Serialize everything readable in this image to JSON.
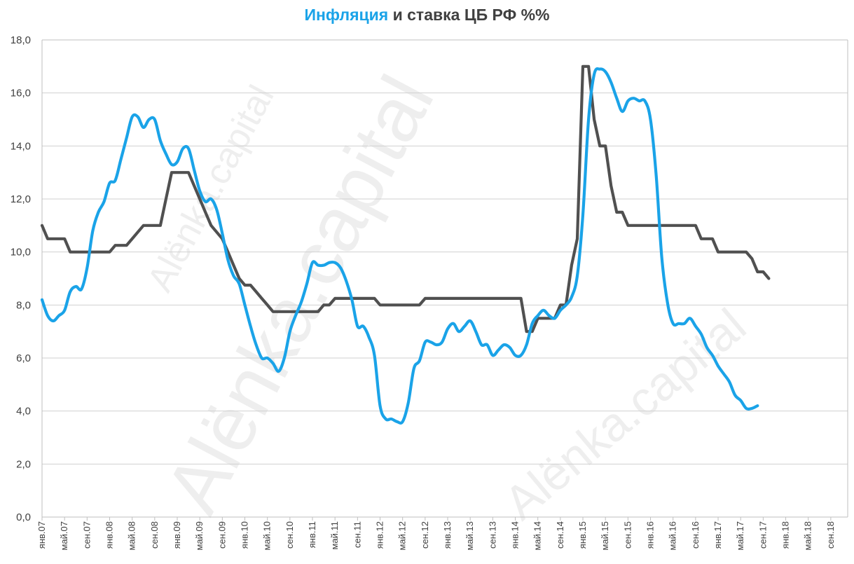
{
  "title": {
    "part1": "Инфляция",
    "part2": " и ставка ЦБ РФ %%"
  },
  "watermarks": [
    "Alënka.capital",
    "Alënka.capital",
    "Alënka.capital"
  ],
  "colors": {
    "inflation": "#1aa3e8",
    "rate": "#505050",
    "grid": "#d0d0d0"
  },
  "chart_data": {
    "type": "line",
    "title": "Инфляция и ставка ЦБ РФ %%",
    "xlabel": "",
    "ylabel": "",
    "ylim": [
      0,
      18
    ],
    "grid": true,
    "legend": "none",
    "yticks": [
      "0,0",
      "2,0",
      "4,0",
      "6,0",
      "8,0",
      "10,0",
      "12,0",
      "14,0",
      "16,0",
      "18,0"
    ],
    "x_tick_labels": [
      "янв.07",
      "май.07",
      "сен.07",
      "янв.08",
      "май.08",
      "сен.08",
      "янв.09",
      "май.09",
      "сен.09",
      "янв.10",
      "май.10",
      "сен.10",
      "янв.11",
      "май.11",
      "сен.11",
      "янв.12",
      "май.12",
      "сен.12",
      "янв.13",
      "май.13",
      "сен.13",
      "янв.14",
      "май.14",
      "сен.14",
      "янв.15",
      "май.15",
      "сен.15",
      "янв.16",
      "май.16",
      "сен.16",
      "янв.17",
      "май.17",
      "сен.17",
      "янв.18",
      "май.18",
      "сен.18"
    ],
    "x_months": 143,
    "series": [
      {
        "key": "inflation",
        "values": [
          8.2,
          7.6,
          7.4,
          7.6,
          7.8,
          8.5,
          8.7,
          8.6,
          9.4,
          10.8,
          11.5,
          11.9,
          12.6,
          12.7,
          13.5,
          14.3,
          15.1,
          15.1,
          14.7,
          15.0,
          15.0,
          14.2,
          13.7,
          13.3,
          13.4,
          13.9,
          13.9,
          13.1,
          12.3,
          11.9,
          12.0,
          11.6,
          10.7,
          9.7,
          9.1,
          8.8,
          8.0,
          7.2,
          6.5,
          6.0,
          6.0,
          5.8,
          5.5,
          6.0,
          7.0,
          7.6,
          8.1,
          8.8,
          9.6,
          9.5,
          9.5,
          9.6,
          9.6,
          9.4,
          8.9,
          8.2,
          7.2,
          7.2,
          6.8,
          6.1,
          4.2,
          3.7,
          3.7,
          3.6,
          3.6,
          4.3,
          5.6,
          5.9,
          6.6,
          6.6,
          6.5,
          6.6,
          7.1,
          7.3,
          7.0,
          7.2,
          7.4,
          7.0,
          6.5,
          6.5,
          6.1,
          6.3,
          6.5,
          6.4,
          6.1,
          6.1,
          6.5,
          7.3,
          7.6,
          7.8,
          7.6,
          7.5,
          7.8,
          8.0,
          8.3,
          9.1,
          11.4,
          15.0,
          16.7,
          16.9,
          16.8,
          16.4,
          15.8,
          15.3,
          15.7,
          15.8,
          15.7,
          15.7,
          15.0,
          12.9,
          9.8,
          8.1,
          7.3,
          7.3,
          7.3,
          7.5,
          7.2,
          6.9,
          6.4,
          6.1,
          5.7,
          5.4,
          5.1,
          4.6,
          4.4,
          4.1,
          4.1,
          4.2
        ],
        "start_month": 0
      },
      {
        "key": "rate",
        "values": [
          11.0,
          10.5,
          10.5,
          10.5,
          10.5,
          10.0,
          10.0,
          10.0,
          10.0,
          10.0,
          10.0,
          10.0,
          10.0,
          10.25,
          10.25,
          10.25,
          10.5,
          10.75,
          11.0,
          11.0,
          11.0,
          11.0,
          12.0,
          13.0,
          13.0,
          13.0,
          13.0,
          12.5,
          12.0,
          11.5,
          11.0,
          10.75,
          10.5,
          10.0,
          9.5,
          9.0,
          8.75,
          8.75,
          8.5,
          8.25,
          8.0,
          7.75,
          7.75,
          7.75,
          7.75,
          7.75,
          7.75,
          7.75,
          7.75,
          7.75,
          8.0,
          8.0,
          8.25,
          8.25,
          8.25,
          8.25,
          8.25,
          8.25,
          8.25,
          8.25,
          8.0,
          8.0,
          8.0,
          8.0,
          8.0,
          8.0,
          8.0,
          8.0,
          8.25,
          8.25,
          8.25,
          8.25,
          8.25,
          8.25,
          8.25,
          8.25,
          8.25,
          8.25,
          8.25,
          8.25,
          8.25,
          8.25,
          8.25,
          8.25,
          8.25,
          8.25,
          7.0,
          7.0,
          7.5,
          7.5,
          7.5,
          7.5,
          8.0,
          8.0,
          9.5,
          10.5,
          17.0,
          17.0,
          15.0,
          14.0,
          14.0,
          12.5,
          11.5,
          11.5,
          11.0,
          11.0,
          11.0,
          11.0,
          11.0,
          11.0,
          11.0,
          11.0,
          11.0,
          11.0,
          11.0,
          11.0,
          11.0,
          10.5,
          10.5,
          10.5,
          10.0,
          10.0,
          10.0,
          10.0,
          10.0,
          10.0,
          9.75,
          9.25,
          9.25,
          9.0
        ],
        "start_month": 0
      }
    ]
  }
}
